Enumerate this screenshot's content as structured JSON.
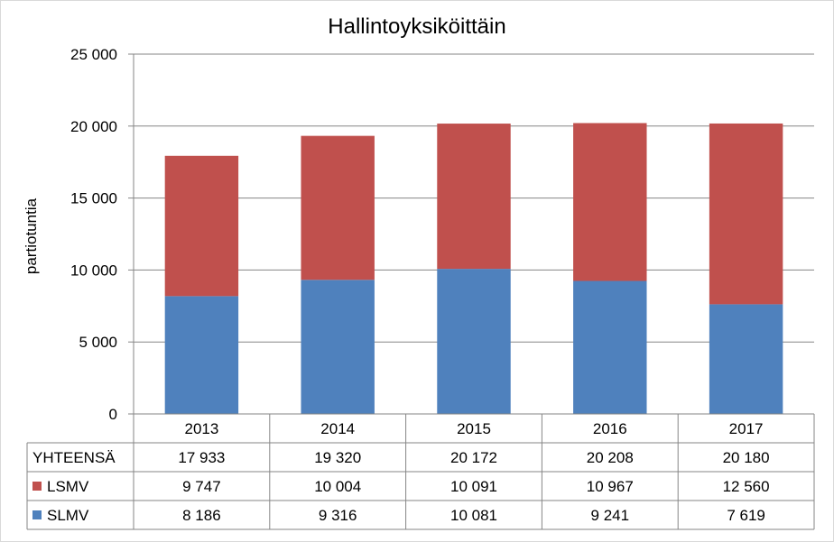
{
  "chart_data": {
    "type": "bar",
    "stacked": true,
    "title": "Hallintoyksiköittäin",
    "xlabel": "",
    "ylabel": "partiotuntia",
    "ylim": [
      0,
      25000
    ],
    "yticks": [
      0,
      5000,
      10000,
      15000,
      20000,
      25000
    ],
    "ytick_labels": [
      "0",
      "5 000",
      "10 000",
      "15 000",
      "20 000",
      "25 000"
    ],
    "grid": true,
    "categories": [
      "2013",
      "2014",
      "2015",
      "2016",
      "2017"
    ],
    "series": [
      {
        "name": "SLMV",
        "color": "#4F81BD",
        "values": [
          8186,
          9316,
          10081,
          9241,
          7619
        ],
        "labels": [
          "8 186",
          "9 316",
          "10 081",
          "9 241",
          "7 619"
        ]
      },
      {
        "name": "LSMV",
        "color": "#C0504D",
        "values": [
          9747,
          10004,
          10091,
          10967,
          12560
        ],
        "labels": [
          "9 747",
          "10 004",
          "10 091",
          "10 967",
          "12 560"
        ]
      }
    ],
    "table": {
      "rows": [
        {
          "name": "YHTEENSÄ",
          "values": [
            "17 933",
            "19 320",
            "20 172",
            "20 208",
            "20 180"
          ]
        },
        {
          "name": "LSMV",
          "color": "#C0504D",
          "values": [
            "9 747",
            "10 004",
            "10 091",
            "10 967",
            "12 560"
          ]
        },
        {
          "name": "SLMV",
          "color": "#4F81BD",
          "values": [
            "8 186",
            "9 316",
            "10 081",
            "9 241",
            "7 619"
          ]
        }
      ]
    }
  }
}
